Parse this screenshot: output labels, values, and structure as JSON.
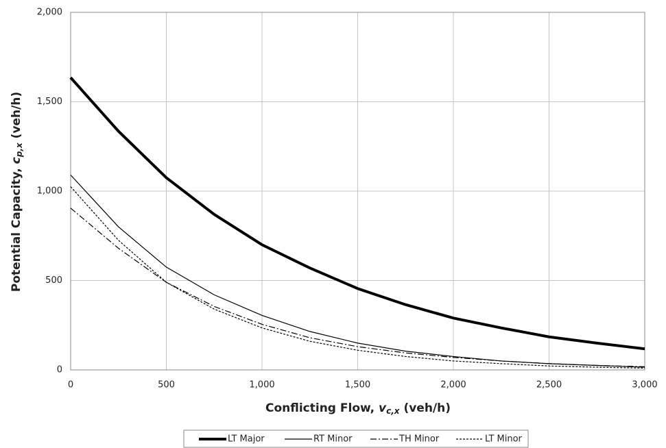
{
  "chart_data": {
    "type": "line",
    "xlabel": {
      "text": "Conflicting Flow, ",
      "var": "v",
      "sub": "c,x",
      "unit": " (veh/h)"
    },
    "ylabel": {
      "text": "Potential Capacity, ",
      "var": "c",
      "sub": "p,x",
      "unit": " (veh/h)"
    },
    "x": [
      0,
      250,
      500,
      750,
      1000,
      1250,
      1500,
      1750,
      2000,
      2250,
      2500,
      2750,
      3000
    ],
    "series": [
      {
        "name": "LT Major",
        "color": "#000000",
        "line_style": "thick",
        "values": [
          1635,
          1335,
          1075,
          870,
          700,
          570,
          455,
          365,
          290,
          235,
          185,
          150,
          118
        ]
      },
      {
        "name": "RT Minor",
        "color": "#000000",
        "line_style": "solid",
        "values": [
          1090,
          800,
          575,
          420,
          305,
          215,
          150,
          105,
          75,
          50,
          35,
          25,
          15
        ]
      },
      {
        "name": "TH Minor",
        "color": "#000000",
        "line_style": "dashdot",
        "values": [
          905,
          680,
          490,
          355,
          255,
          180,
          130,
          95,
          70,
          50,
          35,
          25,
          18
        ]
      },
      {
        "name": "LT Minor",
        "color": "#000000",
        "line_style": "dotted",
        "values": [
          1025,
          725,
          490,
          340,
          235,
          160,
          110,
          75,
          50,
          35,
          22,
          15,
          10
        ]
      }
    ],
    "xlim": [
      0,
      3000
    ],
    "xticks": [
      0,
      500,
      {
        "value": 1000,
        "label": "1,000"
      },
      {
        "value": 1500,
        "label": "1,500"
      },
      {
        "value": 2000,
        "label": "2,000"
      },
      {
        "value": 2500,
        "label": "2,500"
      },
      {
        "value": 3000,
        "label": "3,000"
      }
    ],
    "ylim": [
      0,
      2000
    ],
    "yticks": [
      0,
      500,
      {
        "value": 1000,
        "label": "1,000"
      },
      {
        "value": 1500,
        "label": "1,500"
      },
      {
        "value": 2000,
        "label": "2,000"
      }
    ],
    "grid": true,
    "legend": "bottom"
  }
}
